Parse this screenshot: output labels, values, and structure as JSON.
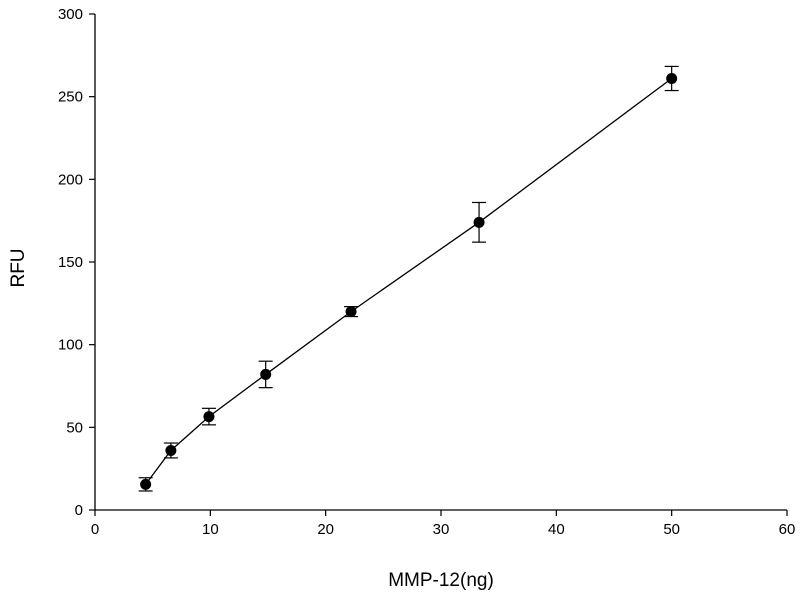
{
  "chart_data": {
    "type": "scatter",
    "title": "",
    "xlabel": "MMP-12(ng)",
    "ylabel": "RFU",
    "xlim": [
      0,
      60
    ],
    "ylim": [
      0,
      300
    ],
    "xticks": [
      "0",
      "10",
      "20",
      "30",
      "40",
      "50",
      "60"
    ],
    "yticks": [
      "0",
      "50",
      "100",
      "150",
      "200",
      "250",
      "300"
    ],
    "grid": false,
    "legend": "none",
    "series": [
      {
        "name": "MMP-12",
        "x": [
          4.39,
          6.58,
          9.88,
          14.8,
          22.2,
          33.3,
          50
        ],
        "y": [
          15.5,
          36,
          56.5,
          82,
          120,
          174,
          261
        ],
        "yerr": [
          4,
          4.5,
          5,
          8,
          3,
          12,
          7.3
        ],
        "marker": "filled-circle",
        "line": "connected"
      }
    ]
  }
}
